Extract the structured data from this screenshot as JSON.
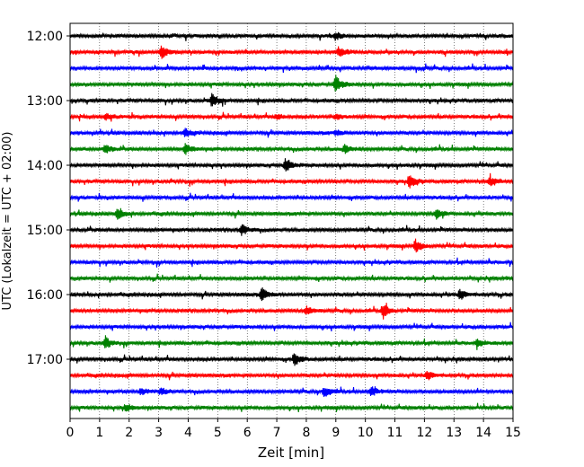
{
  "chart_data": {
    "type": "line",
    "subtype": "helicorder",
    "xlabel": "Zeit  [min]",
    "ylabel": "UTC (Lokalzeit = UTC + 02:00)",
    "xlim": [
      0,
      15
    ],
    "x_ticks": [
      "0",
      "1",
      "2",
      "3",
      "4",
      "5",
      "6",
      "7",
      "8",
      "9",
      "10",
      "11",
      "12",
      "13",
      "14",
      "15"
    ],
    "y_tick_labels": [
      "12:00",
      "13:00",
      "14:00",
      "15:00",
      "16:00",
      "17:00"
    ],
    "y_tick_rows": [
      0,
      4,
      8,
      12,
      16,
      20
    ],
    "grid": "vertical dotted",
    "trace_colors": [
      "#000000",
      "#ff0000",
      "#0000ff",
      "#008000"
    ],
    "row_count": 24,
    "row_interval_minutes": 15,
    "events": [
      {
        "row": 0,
        "x": 9.0,
        "amp": 0.5
      },
      {
        "row": 1,
        "x": 3.1,
        "amp": 0.9
      },
      {
        "row": 1,
        "x": 9.1,
        "amp": 0.7
      },
      {
        "row": 3,
        "x": 9.0,
        "amp": 1.1
      },
      {
        "row": 4,
        "x": 4.8,
        "amp": 1.0
      },
      {
        "row": 5,
        "x": 1.2,
        "amp": 0.4
      },
      {
        "row": 5,
        "x": 7.0,
        "amp": 0.4
      },
      {
        "row": 5,
        "x": 9.0,
        "amp": 0.4
      },
      {
        "row": 6,
        "x": 3.9,
        "amp": 0.5
      },
      {
        "row": 6,
        "x": 9.0,
        "amp": 0.4
      },
      {
        "row": 7,
        "x": 1.2,
        "amp": 0.7
      },
      {
        "row": 7,
        "x": 3.9,
        "amp": 0.7
      },
      {
        "row": 7,
        "x": 9.3,
        "amp": 0.6
      },
      {
        "row": 8,
        "x": 7.3,
        "amp": 1.0
      },
      {
        "row": 9,
        "x": 11.5,
        "amp": 0.9
      },
      {
        "row": 9,
        "x": 14.2,
        "amp": 0.6
      },
      {
        "row": 11,
        "x": 1.6,
        "amp": 0.8
      },
      {
        "row": 11,
        "x": 12.4,
        "amp": 0.7
      },
      {
        "row": 12,
        "x": 5.8,
        "amp": 0.8
      },
      {
        "row": 13,
        "x": 11.7,
        "amp": 0.9
      },
      {
        "row": 16,
        "x": 6.5,
        "amp": 0.9
      },
      {
        "row": 16,
        "x": 13.2,
        "amp": 0.7
      },
      {
        "row": 17,
        "x": 10.6,
        "amp": 1.0
      },
      {
        "row": 17,
        "x": 8.0,
        "amp": 0.6
      },
      {
        "row": 19,
        "x": 1.2,
        "amp": 0.8
      },
      {
        "row": 19,
        "x": 13.8,
        "amp": 0.5
      },
      {
        "row": 20,
        "x": 7.6,
        "amp": 1.0
      },
      {
        "row": 21,
        "x": 12.1,
        "amp": 0.6
      },
      {
        "row": 22,
        "x": 2.4,
        "amp": 0.4
      },
      {
        "row": 22,
        "x": 3.1,
        "amp": 0.5
      },
      {
        "row": 22,
        "x": 8.6,
        "amp": 0.8
      },
      {
        "row": 22,
        "x": 10.2,
        "amp": 0.6
      },
      {
        "row": 23,
        "x": 1.9,
        "amp": 0.5
      }
    ]
  }
}
